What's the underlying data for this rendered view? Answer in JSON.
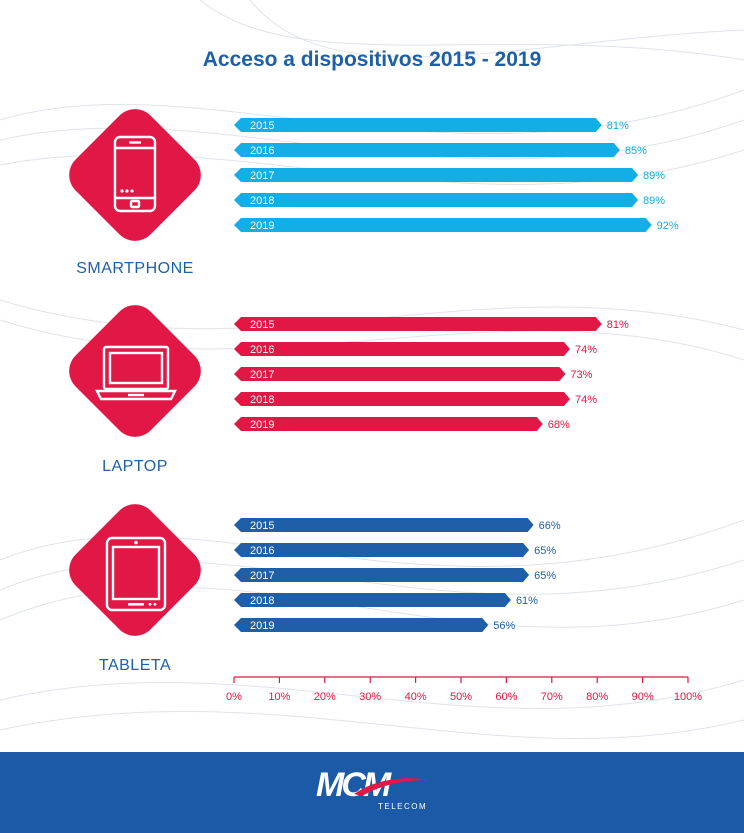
{
  "title": "Acceso a dispositivos 2015 - 2019",
  "colors": {
    "smartphone": "#13aee6",
    "laptop": "#e11845",
    "tablet": "#1f5fa8",
    "axis": "#e11845",
    "footer": "#1a5aa6"
  },
  "devices": {
    "smartphone": {
      "label": "SMARTPHONE",
      "icon": "smartphone-icon"
    },
    "laptop": {
      "label": "LAPTOP",
      "icon": "laptop-icon"
    },
    "tablet": {
      "label": "TABLETA",
      "icon": "tablet-icon"
    }
  },
  "chart_data": {
    "type": "bar",
    "orientation": "horizontal",
    "title": "Acceso a dispositivos 2015 - 2019",
    "categories": [
      "2015",
      "2016",
      "2017",
      "2018",
      "2019"
    ],
    "xlim": [
      0,
      100
    ],
    "x_ticks": [
      "0%",
      "10%",
      "20%",
      "30%",
      "40%",
      "50%",
      "60%",
      "70%",
      "80%",
      "90%",
      "100%"
    ],
    "series": [
      {
        "name": "SMARTPHONE",
        "values": [
          81,
          85,
          89,
          89,
          92
        ],
        "labels": [
          "81%",
          "85%",
          "89%",
          "89%",
          "92%"
        ]
      },
      {
        "name": "LAPTOP",
        "values": [
          81,
          74,
          73,
          74,
          68
        ],
        "labels": [
          "81%",
          "74%",
          "73%",
          "74%",
          "68%"
        ]
      },
      {
        "name": "TABLETA",
        "values": [
          66,
          65,
          65,
          61,
          56
        ],
        "labels": [
          "66%",
          "65%",
          "65%",
          "61%",
          "56%"
        ]
      }
    ]
  },
  "footer": {
    "logo": "MCM",
    "logo_sub": "TELECOM"
  }
}
